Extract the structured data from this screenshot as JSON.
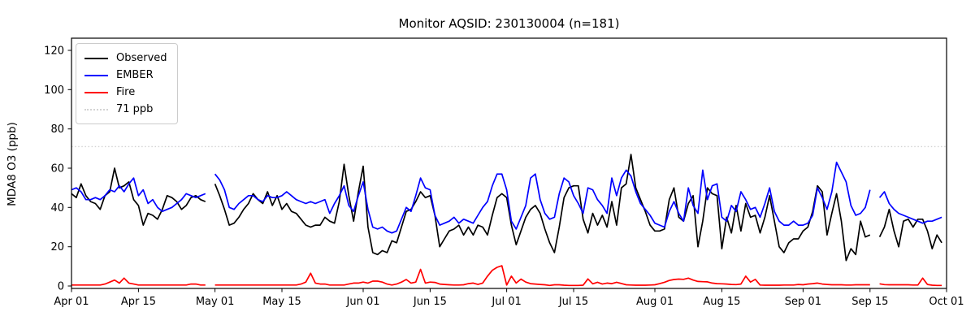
{
  "chart_data": {
    "type": "line",
    "title": "Monitor AQSID: 230130004 (n=181)",
    "xlabel": "",
    "ylabel": "MDA8 O3 (ppb)",
    "ylim": [
      0,
      126
    ],
    "yticks": [
      0,
      20,
      40,
      60,
      80,
      100,
      120
    ],
    "grid": false,
    "legend_position": "upper left",
    "x_start": "Apr 01",
    "x_end": "Oct 01",
    "x_unit": "day index from Apr 01",
    "x_range_days": [
      0,
      183
    ],
    "x_ticks": [
      {
        "day": 0,
        "label": "Apr 01"
      },
      {
        "day": 14,
        "label": "Apr 15"
      },
      {
        "day": 30,
        "label": "May 01"
      },
      {
        "day": 44,
        "label": "May 15"
      },
      {
        "day": 61,
        "label": "Jun 01"
      },
      {
        "day": 75,
        "label": "Jun 15"
      },
      {
        "day": 91,
        "label": "Jul 01"
      },
      {
        "day": 105,
        "label": "Jul 15"
      },
      {
        "day": 122,
        "label": "Aug 01"
      },
      {
        "day": 136,
        "label": "Aug 15"
      },
      {
        "day": 153,
        "label": "Sep 01"
      },
      {
        "day": 167,
        "label": "Sep 15"
      },
      {
        "day": 183,
        "label": "Oct 01"
      }
    ],
    "threshold": {
      "label": "71 ppb",
      "value": 71,
      "color": "#d3d3d3",
      "style": "dotted"
    },
    "legend_items": [
      {
        "label": "Observed",
        "color": "#000000",
        "dash": "solid"
      },
      {
        "label": "EMBER",
        "color": "#0000ff",
        "dash": "solid"
      },
      {
        "label": "Fire",
        "color": "#ff0000",
        "dash": "solid"
      },
      {
        "label": "71 ppb",
        "color": "#d3d3d3",
        "dash": "dotted"
      }
    ],
    "missing_days": [
      "Apr 30",
      "Sep 16"
    ],
    "series": [
      {
        "name": "Observed",
        "color": "#000000",
        "values": [
          47,
          45,
          52,
          46,
          43,
          42,
          39,
          46,
          48,
          60,
          50,
          51,
          53,
          44,
          41,
          31,
          37,
          36,
          34,
          39,
          46,
          45,
          43,
          39,
          41,
          45,
          46,
          44,
          43,
          null,
          52,
          46,
          39,
          31,
          32,
          35,
          39,
          42,
          47,
          44,
          42,
          48,
          41,
          46,
          39,
          42,
          38,
          37,
          34,
          31,
          30,
          31,
          31,
          35,
          33,
          32,
          43,
          62,
          46,
          33,
          48,
          61,
          30,
          17,
          16,
          18,
          17,
          23,
          22,
          30,
          38,
          39,
          43,
          48,
          45,
          46,
          36,
          20,
          24,
          28,
          29,
          31,
          26,
          30,
          26,
          31,
          30,
          26,
          36,
          45,
          47,
          45,
          31,
          21,
          28,
          35,
          39,
          41,
          37,
          29,
          22,
          17,
          30,
          45,
          50,
          51,
          51,
          34,
          27,
          37,
          31,
          36,
          30,
          43,
          31,
          50,
          52,
          67,
          50,
          44,
          38,
          31,
          28,
          28,
          29,
          44,
          50,
          35,
          33,
          42,
          46,
          20,
          33,
          50,
          47,
          46,
          19,
          35,
          27,
          41,
          28,
          42,
          35,
          36,
          27,
          35,
          46,
          33,
          20,
          17,
          22,
          24,
          24,
          28,
          30,
          38,
          51,
          48,
          26,
          37,
          47,
          33,
          13,
          19,
          16,
          33,
          25,
          26,
          null,
          25,
          30,
          39,
          28,
          20,
          33,
          34,
          30,
          34,
          34,
          28,
          19,
          26,
          22
        ]
      },
      {
        "name": "EMBER",
        "color": "#0000ff",
        "values": [
          49,
          50,
          48,
          44,
          44,
          45,
          44,
          46,
          49,
          48,
          51,
          48,
          52,
          55,
          46,
          49,
          42,
          44,
          40,
          38,
          39,
          40,
          42,
          44,
          47,
          46,
          45,
          46,
          47,
          null,
          57,
          54,
          49,
          40,
          39,
          42,
          44,
          46,
          46,
          44,
          43,
          46,
          45,
          45,
          46,
          48,
          46,
          44,
          43,
          42,
          43,
          42,
          43,
          44,
          37,
          42,
          46,
          51,
          41,
          38,
          46,
          53,
          39,
          30,
          29,
          30,
          28,
          27,
          28,
          34,
          40,
          38,
          46,
          55,
          50,
          49,
          36,
          31,
          32,
          33,
          35,
          32,
          34,
          33,
          32,
          36,
          40,
          43,
          51,
          57,
          57,
          49,
          33,
          29,
          35,
          41,
          55,
          57,
          44,
          37,
          34,
          35,
          47,
          55,
          53,
          46,
          42,
          37,
          50,
          49,
          44,
          41,
          37,
          55,
          46,
          55,
          59,
          56,
          48,
          42,
          39,
          36,
          32,
          31,
          30,
          38,
          43,
          37,
          33,
          50,
          41,
          37,
          59,
          44,
          51,
          52,
          35,
          33,
          41,
          38,
          48,
          44,
          39,
          40,
          35,
          42,
          50,
          38,
          33,
          31,
          31,
          33,
          31,
          31,
          32,
          36,
          50,
          45,
          39,
          48,
          63,
          58,
          53,
          41,
          36,
          37,
          40,
          49,
          null,
          45,
          48,
          42,
          39,
          37,
          36,
          35,
          34,
          33,
          32,
          33,
          33,
          34,
          35
        ]
      },
      {
        "name": "Fire",
        "color": "#ff0000",
        "values": [
          0.5,
          0.5,
          0.5,
          0.5,
          0.5,
          0.5,
          0.5,
          1,
          2,
          3,
          1.5,
          4,
          1.5,
          1,
          0.5,
          0.5,
          0.5,
          0.5,
          0.5,
          0.5,
          0.5,
          0.5,
          0.5,
          0.5,
          0.5,
          1,
          1,
          0.5,
          0.5,
          null,
          0.5,
          0.5,
          0.5,
          0.5,
          0.5,
          0.5,
          0.5,
          0.5,
          0.5,
          0.5,
          0.5,
          0.5,
          0.5,
          0.5,
          0.5,
          0.5,
          0.5,
          0.5,
          1,
          2,
          6.5,
          1.5,
          1,
          1,
          0.5,
          0.5,
          0.5,
          0.5,
          1,
          1.5,
          1.5,
          2,
          1.5,
          2.5,
          2.5,
          2,
          1,
          0.5,
          1,
          2,
          3.3,
          1.5,
          2,
          8.5,
          1.5,
          2,
          1.8,
          1,
          0.8,
          0.6,
          0.5,
          0.5,
          0.6,
          1.2,
          1.5,
          0.8,
          1.5,
          5,
          8,
          9.5,
          10.3,
          0.5,
          5,
          1.5,
          3.5,
          2,
          1.2,
          1,
          0.8,
          0.6,
          0.3,
          0.6,
          0.6,
          0.4,
          0.3,
          0.3,
          0.3,
          0.4,
          3.6,
          1.1,
          1.9,
          1,
          1.5,
          1.2,
          1.9,
          1.3,
          0.6,
          0.5,
          0.4,
          0.4,
          0.4,
          0.5,
          0.6,
          1.2,
          1.9,
          2.8,
          3.3,
          3.5,
          3.4,
          4,
          3,
          2.3,
          2.2,
          2.1,
          1.5,
          1.2,
          1.1,
          1,
          0.8,
          0.7,
          1,
          5,
          2,
          3.4,
          0.5,
          0.4,
          0.4,
          0.4,
          0.4,
          0.5,
          0.5,
          0.5,
          0.8,
          0.6,
          1,
          1.2,
          1.5,
          1,
          0.8,
          0.6,
          0.6,
          0.6,
          0.5,
          0.5,
          0.6,
          0.6,
          0.6,
          0.6,
          null,
          1.1,
          0.7,
          0.6,
          0.6,
          0.6,
          0.6,
          0.6,
          0.5,
          0.5,
          4,
          0.8,
          0.4,
          0.3,
          0.3
        ]
      }
    ]
  }
}
